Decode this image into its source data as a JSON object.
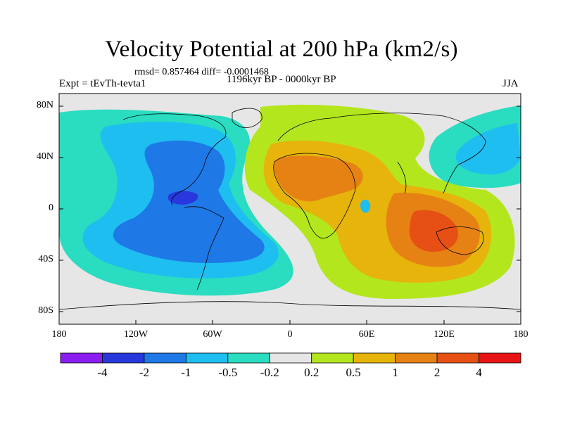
{
  "title": "Velocity Potential at 200 hPa (km2/s)",
  "stats": "rmsd= 0.857464 diff= -0.0001468",
  "experiment": "Expt = tEvTh-tevta1",
  "period": "1196kyr BP - 0000kyr BP",
  "season": "JJA",
  "axes": {
    "y_ticks": [
      "80N",
      "40N",
      "0",
      "40S",
      "80S"
    ],
    "x_ticks": [
      "180",
      "120W",
      "60W",
      "0",
      "60E",
      "120E",
      "180"
    ]
  },
  "colorbar": {
    "colors": [
      "#8a1ef0",
      "#2838dc",
      "#1e78e6",
      "#1ebef0",
      "#2adcc0",
      "#e6e6e6",
      "#b4e61e",
      "#e6b40a",
      "#e68214",
      "#e65014",
      "#e61414"
    ],
    "labels": [
      "-4",
      "-2",
      "-1",
      "-0.5",
      "-0.2",
      "0.2",
      "0.5",
      "1",
      "2",
      "4"
    ]
  },
  "fill_colors": {
    "neutral": "#e6e6e6",
    "neg1": "#2adcc0",
    "neg2": "#1ebef0",
    "neg3": "#1e78e6",
    "neg4": "#2838dc",
    "pos1": "#b4e61e",
    "pos2": "#e6b40a",
    "pos3": "#e68214",
    "pos4": "#e65014"
  }
}
